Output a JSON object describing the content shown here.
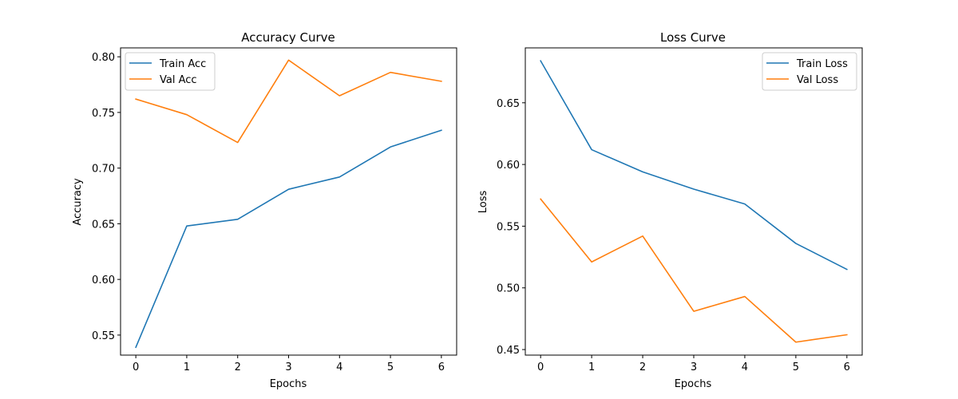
{
  "colors": {
    "train": "#1f77b4",
    "val": "#ff7f0e",
    "frame": "#000000",
    "legend_border": "#cccccc"
  },
  "chart_data": [
    {
      "type": "line",
      "title": "Accuracy Curve",
      "xlabel": "Epochs",
      "ylabel": "Accuracy",
      "x": [
        0,
        1,
        2,
        3,
        4,
        5,
        6
      ],
      "xlim": [
        -0.3,
        6.3
      ],
      "ylim": [
        0.532,
        0.808
      ],
      "xticks": [
        "0",
        "1",
        "2",
        "3",
        "4",
        "5",
        "6"
      ],
      "yticks": [
        "0.55",
        "0.60",
        "0.65",
        "0.70",
        "0.75",
        "0.80"
      ],
      "ytick_values": [
        0.55,
        0.6,
        0.65,
        0.7,
        0.75,
        0.8
      ],
      "legend_position": "top-left",
      "grid": false,
      "series": [
        {
          "name": "Train Acc",
          "color": "#1f77b4",
          "values": [
            0.539,
            0.648,
            0.654,
            0.681,
            0.692,
            0.719,
            0.734
          ]
        },
        {
          "name": "Val Acc",
          "color": "#ff7f0e",
          "values": [
            0.762,
            0.748,
            0.723,
            0.797,
            0.765,
            0.786,
            0.778
          ]
        }
      ]
    },
    {
      "type": "line",
      "title": "Loss Curve",
      "xlabel": "Epochs",
      "ylabel": "Loss",
      "x": [
        0,
        1,
        2,
        3,
        4,
        5,
        6
      ],
      "xlim": [
        -0.3,
        6.3
      ],
      "ylim": [
        0.4455,
        0.6945
      ],
      "xticks": [
        "0",
        "1",
        "2",
        "3",
        "4",
        "5",
        "6"
      ],
      "yticks": [
        "0.45",
        "0.50",
        "0.55",
        "0.60",
        "0.65"
      ],
      "ytick_values": [
        0.45,
        0.5,
        0.55,
        0.6,
        0.65
      ],
      "legend_position": "top-right",
      "grid": false,
      "series": [
        {
          "name": "Train Loss",
          "color": "#1f77b4",
          "values": [
            0.684,
            0.612,
            0.594,
            0.58,
            0.568,
            0.536,
            0.515
          ]
        },
        {
          "name": "Val Loss",
          "color": "#ff7f0e",
          "values": [
            0.572,
            0.521,
            0.542,
            0.481,
            0.493,
            0.456,
            0.462
          ]
        }
      ]
    }
  ]
}
